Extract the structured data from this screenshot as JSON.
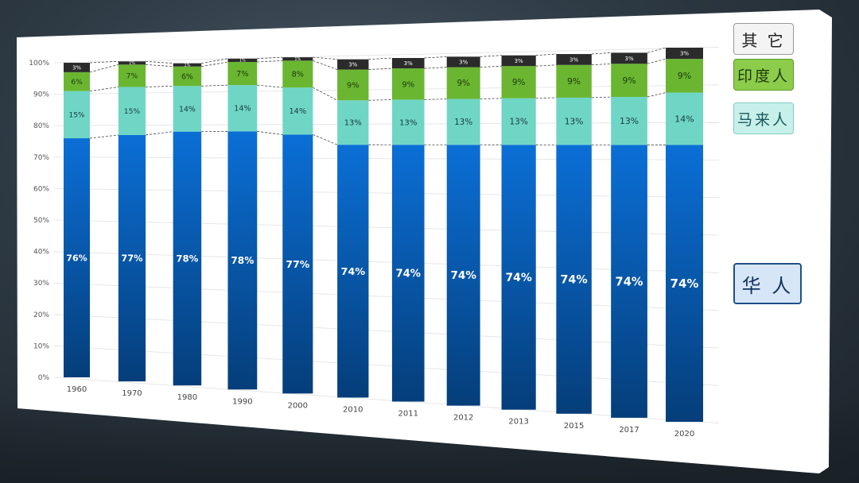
{
  "chart_data": {
    "type": "bar",
    "stacked": true,
    "categories": [
      "1960",
      "1970",
      "1980",
      "1990",
      "2000",
      "2010",
      "2011",
      "2012",
      "2013",
      "2015",
      "2017",
      "2020"
    ],
    "series": [
      {
        "name": "华人",
        "color": "#0a5fc0",
        "values": [
          76,
          77,
          78,
          78,
          77,
          74,
          74,
          74,
          74,
          74,
          74,
          74
        ],
        "labels": [
          "76%",
          "77%",
          "78%",
          "78%",
          "77%",
          "74%",
          "74%",
          "74%",
          "74%",
          "74%",
          "74%",
          "74%"
        ]
      },
      {
        "name": "马来人",
        "color": "#6fd6c6",
        "values": [
          15,
          15,
          14,
          14,
          14,
          13,
          13,
          13,
          13,
          13,
          13,
          14
        ],
        "labels": [
          "15%",
          "15%",
          "14%",
          "14%",
          "14%",
          "13%",
          "13%",
          "13%",
          "13%",
          "13%",
          "13%",
          "14%"
        ]
      },
      {
        "name": "印度人",
        "color": "#6ab631",
        "values": [
          6,
          7,
          6,
          7,
          8,
          9,
          9,
          9,
          9,
          9,
          9,
          9
        ],
        "labels": [
          "6%",
          "7%",
          "6%",
          "7%",
          "8%",
          "9%",
          "9%",
          "9%",
          "9%",
          "9%",
          "9%",
          "9%"
        ]
      },
      {
        "name": "其它",
        "color": "#2b2b2b",
        "values": [
          3,
          1,
          1,
          1,
          1,
          3,
          3,
          3,
          3,
          3,
          3,
          3
        ],
        "labels": [
          "3%",
          "1%",
          "1%",
          "1%",
          "1%",
          "3%",
          "3%",
          "3%",
          "3%",
          "3%",
          "3%",
          "3%"
        ]
      }
    ],
    "yticks": [
      "0%",
      "10%",
      "20%",
      "30%",
      "40%",
      "50%",
      "60%",
      "70%",
      "80%",
      "90%",
      "100%"
    ],
    "ylim": [
      0,
      100
    ],
    "grid": true,
    "legend_position": "right",
    "connector_lines": "dashed"
  },
  "legend": {
    "other": "其 它",
    "indian": "印度人",
    "malay": "马来人",
    "chinese": "华 人"
  },
  "colors": {
    "chinese_top": "#0a66cc",
    "chinese_bottom": "#053e7a",
    "malay": "#6fd6c6",
    "indian": "#6ab631",
    "other": "#2b2b2b"
  }
}
